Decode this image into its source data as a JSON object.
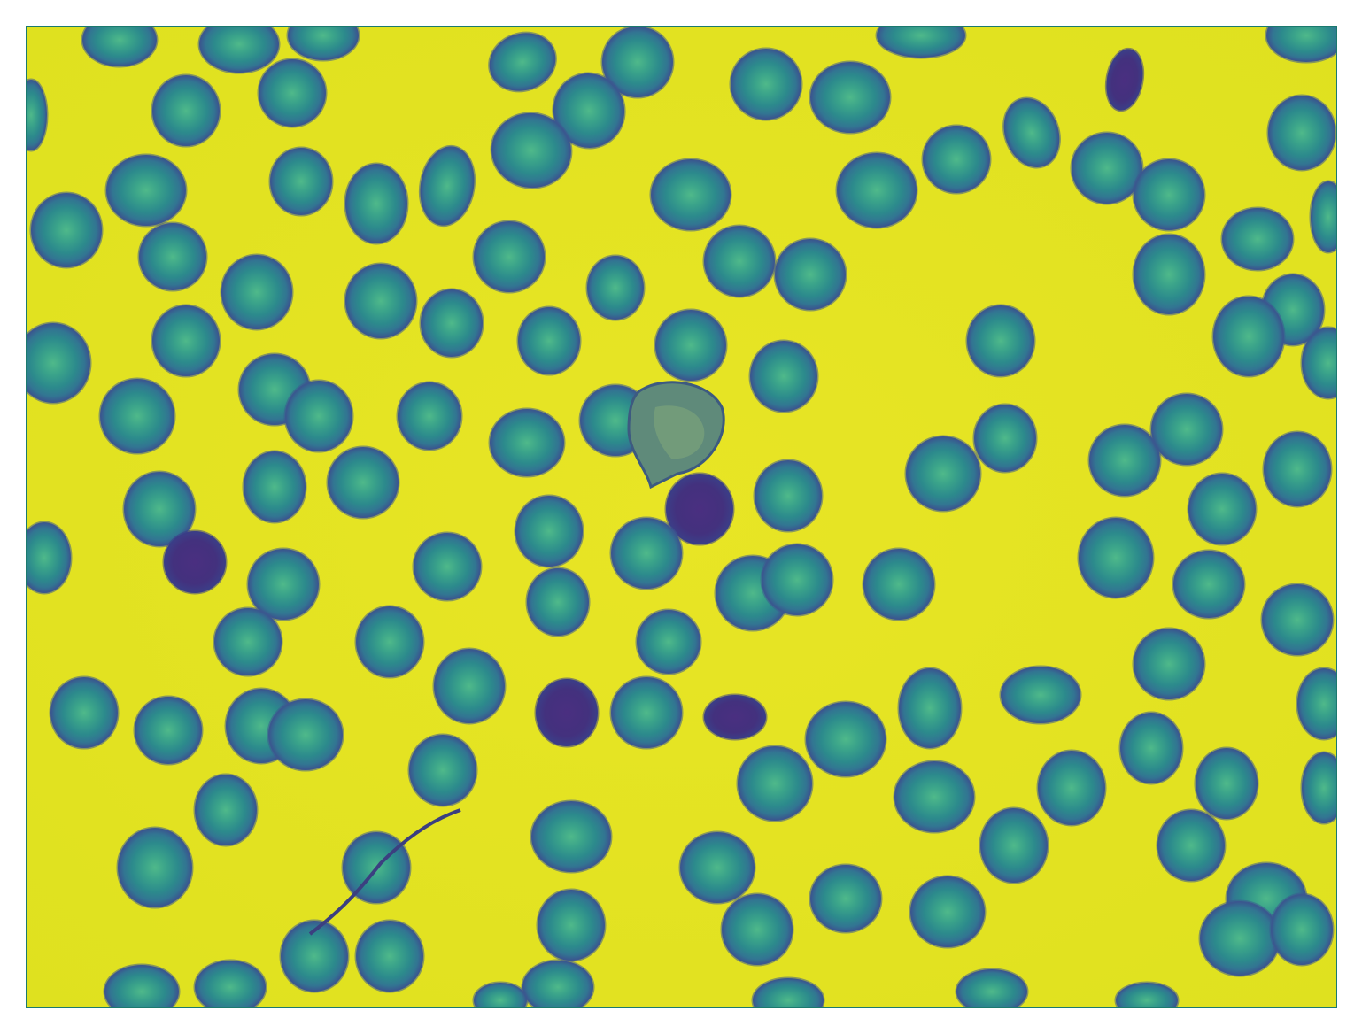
{
  "image": {
    "kind": "false-color microscopy",
    "subject": "blood-smear",
    "colormap": "viridis"
  },
  "colors": {
    "background": "#e5e420",
    "background_light": "#eeea2a",
    "cell_rim": "#3a5691",
    "cell_body": "#2a8c8b",
    "cell_center": "#44b488",
    "cell_dark": "#3b2a79",
    "frame_border": "#1b7a6e"
  }
}
